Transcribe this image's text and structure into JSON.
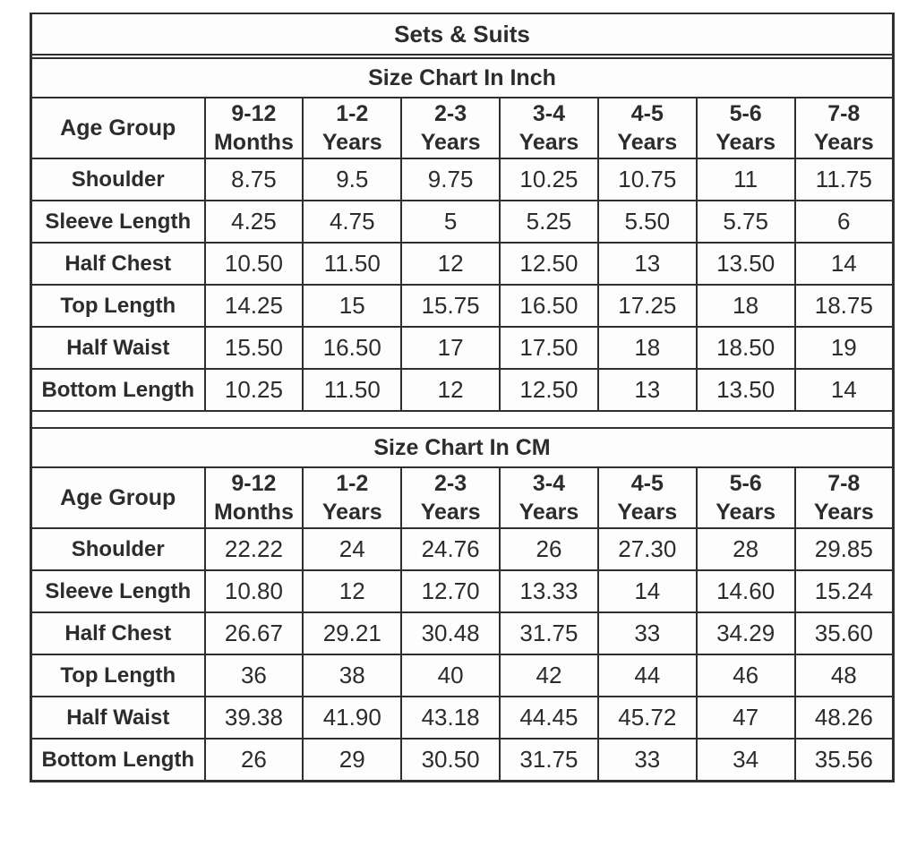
{
  "title": "Sets & Suits",
  "columns": [
    {
      "top": "9-12",
      "bottom": "Months"
    },
    {
      "top": "1-2",
      "bottom": "Years"
    },
    {
      "top": "2-3",
      "bottom": "Years"
    },
    {
      "top": "3-4",
      "bottom": "Years"
    },
    {
      "top": "4-5",
      "bottom": "Years"
    },
    {
      "top": "5-6",
      "bottom": "Years"
    },
    {
      "top": "7-8",
      "bottom": "Years"
    }
  ],
  "colors": {
    "border": "#2f2f2f",
    "text": "#2c2c2c",
    "background": "#fdfdfd"
  },
  "chart_data": [
    {
      "type": "table",
      "title": "Size Chart In Inch",
      "row_header": "Age Group",
      "columns": [
        "9-12 Months",
        "1-2 Years",
        "2-3 Years",
        "3-4 Years",
        "4-5 Years",
        "5-6 Years",
        "7-8 Years"
      ],
      "rows": [
        {
          "label": "Shoulder",
          "values": [
            "8.75",
            "9.5",
            "9.75",
            "10.25",
            "10.75",
            "11",
            "11.75"
          ]
        },
        {
          "label": "Sleeve Length",
          "values": [
            "4.25",
            "4.75",
            "5",
            "5.25",
            "5.50",
            "5.75",
            "6"
          ]
        },
        {
          "label": "Half Chest",
          "values": [
            "10.50",
            "11.50",
            "12",
            "12.50",
            "13",
            "13.50",
            "14"
          ]
        },
        {
          "label": "Top Length",
          "values": [
            "14.25",
            "15",
            "15.75",
            "16.50",
            "17.25",
            "18",
            "18.75"
          ]
        },
        {
          "label": "Half Waist",
          "values": [
            "15.50",
            "16.50",
            "17",
            "17.50",
            "18",
            "18.50",
            "19"
          ]
        },
        {
          "label": "Bottom Length",
          "values": [
            "10.25",
            "11.50",
            "12",
            "12.50",
            "13",
            "13.50",
            "14"
          ]
        }
      ]
    },
    {
      "type": "table",
      "title": "Size Chart In CM",
      "row_header": "Age Group",
      "columns": [
        "9-12 Months",
        "1-2 Years",
        "2-3 Years",
        "3-4 Years",
        "4-5 Years",
        "5-6 Years",
        "7-8 Years"
      ],
      "rows": [
        {
          "label": "Shoulder",
          "values": [
            "22.22",
            "24",
            "24.76",
            "26",
            "27.30",
            "28",
            "29.85"
          ]
        },
        {
          "label": "Sleeve Length",
          "values": [
            "10.80",
            "12",
            "12.70",
            "13.33",
            "14",
            "14.60",
            "15.24"
          ]
        },
        {
          "label": "Half Chest",
          "values": [
            "26.67",
            "29.21",
            "30.48",
            "31.75",
            "33",
            "34.29",
            "35.60"
          ]
        },
        {
          "label": "Top Length",
          "values": [
            "36",
            "38",
            "40",
            "42",
            "44",
            "46",
            "48"
          ]
        },
        {
          "label": "Half Waist",
          "values": [
            "39.38",
            "41.90",
            "43.18",
            "44.45",
            "45.72",
            "47",
            "48.26"
          ]
        },
        {
          "label": "Bottom Length",
          "values": [
            "26",
            "29",
            "30.50",
            "31.75",
            "33",
            "34",
            "35.56"
          ]
        }
      ]
    }
  ]
}
